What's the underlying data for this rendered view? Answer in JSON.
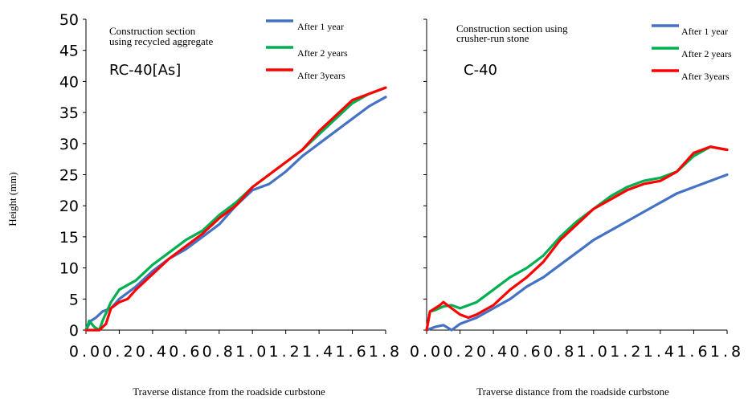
{
  "figure": {
    "ylabel": "Height (mm)",
    "xlabel": "Traverse distance from the roadside curbstone"
  },
  "chart_data": [
    {
      "type": "line",
      "title": "Construction section using recycled aggregate",
      "code": "RC-40[As]",
      "xlabel": "Traverse distance from the roadside curbstone",
      "ylabel": "Height (mm)",
      "xlim": [
        0,
        1.8
      ],
      "ylim": [
        0,
        50
      ],
      "xticks": [
        "0.0",
        "0.2",
        "0.4",
        "0.6",
        "0.8",
        "1.0",
        "1.2",
        "1.4",
        "1.6",
        "1.8"
      ],
      "yticks": [
        "0",
        "5",
        "10",
        "15",
        "20",
        "25",
        "30",
        "35",
        "40",
        "45",
        "50"
      ],
      "legend_position": "top-right",
      "series": [
        {
          "name": "After 1 year",
          "color": "#4472C4",
          "points": [
            [
              0,
              0
            ],
            [
              0.03,
              1.5
            ],
            [
              0.06,
              2.0
            ],
            [
              0.1,
              3.0
            ],
            [
              0.15,
              3.5
            ],
            [
              0.2,
              5.0
            ],
            [
              0.3,
              7.0
            ],
            [
              0.4,
              9.5
            ],
            [
              0.5,
              11.5
            ],
            [
              0.6,
              13.0
            ],
            [
              0.7,
              15.0
            ],
            [
              0.8,
              17.0
            ],
            [
              0.9,
              20.0
            ],
            [
              1.0,
              22.5
            ],
            [
              1.1,
              23.5
            ],
            [
              1.2,
              25.5
            ],
            [
              1.3,
              28.0
            ],
            [
              1.4,
              30.0
            ],
            [
              1.5,
              32.0
            ],
            [
              1.6,
              34.0
            ],
            [
              1.7,
              36.0
            ],
            [
              1.8,
              37.5
            ]
          ]
        },
        {
          "name": "After 2 years",
          "color": "#00B050",
          "points": [
            [
              0,
              0
            ],
            [
              0.02,
              1.5
            ],
            [
              0.05,
              0.5
            ],
            [
              0.08,
              0
            ],
            [
              0.1,
              1.5
            ],
            [
              0.15,
              4.5
            ],
            [
              0.2,
              6.5
            ],
            [
              0.3,
              8.0
            ],
            [
              0.4,
              10.5
            ],
            [
              0.5,
              12.5
            ],
            [
              0.6,
              14.5
            ],
            [
              0.7,
              16.0
            ],
            [
              0.8,
              18.5
            ],
            [
              0.9,
              20.5
            ],
            [
              1.0,
              23.0
            ],
            [
              1.1,
              25.0
            ],
            [
              1.2,
              27.0
            ],
            [
              1.3,
              29.0
            ],
            [
              1.4,
              31.5
            ],
            [
              1.5,
              34.0
            ],
            [
              1.6,
              36.5
            ],
            [
              1.7,
              38.0
            ],
            [
              1.8,
              39.0
            ]
          ]
        },
        {
          "name": "After 3years",
          "color": "#FF0000",
          "points": [
            [
              0,
              0
            ],
            [
              0.08,
              0
            ],
            [
              0.12,
              1.0
            ],
            [
              0.15,
              3.5
            ],
            [
              0.2,
              4.5
            ],
            [
              0.25,
              5.0
            ],
            [
              0.3,
              6.5
            ],
            [
              0.4,
              9.0
            ],
            [
              0.5,
              11.5
            ],
            [
              0.6,
              13.5
            ],
            [
              0.7,
              15.5
            ],
            [
              0.8,
              18.0
            ],
            [
              0.9,
              20.0
            ],
            [
              1.0,
              23.0
            ],
            [
              1.1,
              25.0
            ],
            [
              1.2,
              27.0
            ],
            [
              1.3,
              29.0
            ],
            [
              1.4,
              32.0
            ],
            [
              1.5,
              34.5
            ],
            [
              1.6,
              37.0
            ],
            [
              1.7,
              38.0
            ],
            [
              1.8,
              39.0
            ]
          ]
        }
      ]
    },
    {
      "type": "line",
      "title": "Construction section using crusher-run stone",
      "code": "C-40",
      "xlabel": "Traverse distance from the roadside curbstone",
      "ylabel": "Height (mm)",
      "xlim": [
        0,
        1.8
      ],
      "ylim": [
        0,
        50
      ],
      "xticks": [
        "0.0",
        "0.2",
        "0.4",
        "0.6",
        "0.8",
        "1.0",
        "1.2",
        "1.4",
        "1.6",
        "1.8"
      ],
      "yticks": [],
      "legend_position": "top-right",
      "series": [
        {
          "name": "After 1 year",
          "color": "#4472C4",
          "points": [
            [
              0,
              0
            ],
            [
              0.05,
              0.5
            ],
            [
              0.1,
              0.8
            ],
            [
              0.15,
              0
            ],
            [
              0.2,
              1.0
            ],
            [
              0.3,
              2.0
            ],
            [
              0.4,
              3.5
            ],
            [
              0.5,
              5.0
            ],
            [
              0.6,
              7.0
            ],
            [
              0.7,
              8.5
            ],
            [
              0.8,
              10.5
            ],
            [
              0.9,
              12.5
            ],
            [
              1.0,
              14.5
            ],
            [
              1.1,
              16.0
            ],
            [
              1.2,
              17.5
            ],
            [
              1.3,
              19.0
            ],
            [
              1.4,
              20.5
            ],
            [
              1.5,
              22.0
            ],
            [
              1.6,
              23.0
            ],
            [
              1.7,
              24.0
            ],
            [
              1.8,
              25.0
            ]
          ]
        },
        {
          "name": "After 2 years",
          "color": "#00B050",
          "points": [
            [
              0,
              0
            ],
            [
              0.02,
              3.0
            ],
            [
              0.05,
              3.2
            ],
            [
              0.1,
              3.8
            ],
            [
              0.15,
              4.0
            ],
            [
              0.2,
              3.5
            ],
            [
              0.3,
              4.5
            ],
            [
              0.4,
              6.5
            ],
            [
              0.5,
              8.5
            ],
            [
              0.6,
              10.0
            ],
            [
              0.7,
              12.0
            ],
            [
              0.8,
              15.0
            ],
            [
              0.9,
              17.5
            ],
            [
              1.0,
              19.5
            ],
            [
              1.1,
              21.5
            ],
            [
              1.2,
              23.0
            ],
            [
              1.3,
              24.0
            ],
            [
              1.4,
              24.5
            ],
            [
              1.5,
              25.5
            ],
            [
              1.6,
              28.0
            ],
            [
              1.7,
              29.5
            ],
            [
              1.8,
              29.0
            ]
          ]
        },
        {
          "name": "After 3years",
          "color": "#FF0000",
          "points": [
            [
              0,
              0
            ],
            [
              0.02,
              3.0
            ],
            [
              0.05,
              3.5
            ],
            [
              0.08,
              4.0
            ],
            [
              0.1,
              4.5
            ],
            [
              0.15,
              3.5
            ],
            [
              0.2,
              2.5
            ],
            [
              0.25,
              2.0
            ],
            [
              0.3,
              2.5
            ],
            [
              0.4,
              4.0
            ],
            [
              0.5,
              6.5
            ],
            [
              0.6,
              8.5
            ],
            [
              0.7,
              11.0
            ],
            [
              0.8,
              14.5
            ],
            [
              0.9,
              17.0
            ],
            [
              1.0,
              19.5
            ],
            [
              1.1,
              21.0
            ],
            [
              1.2,
              22.5
            ],
            [
              1.3,
              23.5
            ],
            [
              1.4,
              24.0
            ],
            [
              1.5,
              25.5
            ],
            [
              1.6,
              28.5
            ],
            [
              1.7,
              29.5
            ],
            [
              1.8,
              29.0
            ]
          ]
        }
      ]
    }
  ]
}
